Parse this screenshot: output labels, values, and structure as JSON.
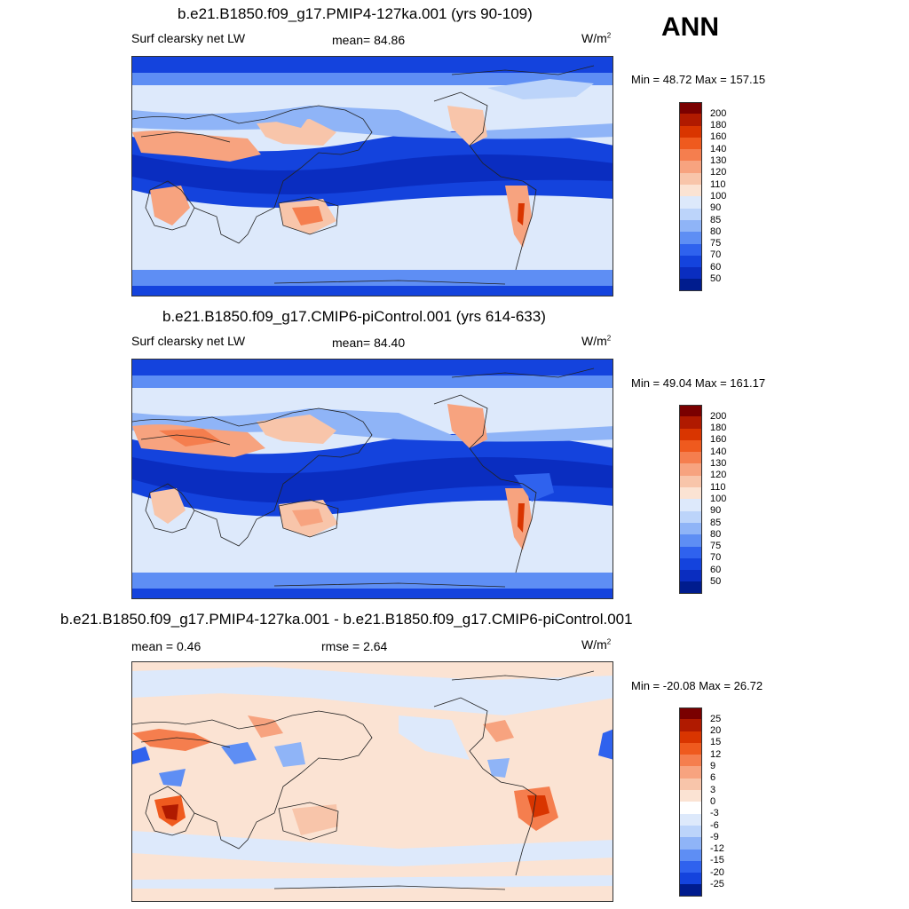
{
  "season": "ANN",
  "panels": [
    {
      "title": "b.e21.B1850.f09_g17.PMIP4-127ka.001 (yrs 90-109)",
      "left_label": "Surf clearsky net LW",
      "center_label": "mean=  84.86",
      "units_base": "W/m",
      "units_exp": "2",
      "minmax": "Min =  48.72 Max = 157.15",
      "colorbar": [
        "#7a0000",
        "#b01a00",
        "#d93500",
        "#ef5a1e",
        "#f57e4e",
        "#f7a37f",
        "#f8c5aa",
        "#fbe3d3",
        "#dde9fb",
        "#bcd4fa",
        "#8fb4f7",
        "#5e8ef4",
        "#2f62ee",
        "#1443dd",
        "#0a2dc0",
        "#001c8e"
      ],
      "ticks": [
        "200",
        "180",
        "160",
        "140",
        "130",
        "120",
        "110",
        "100",
        "90",
        "85",
        "80",
        "75",
        "70",
        "60",
        "50"
      ]
    },
    {
      "title": "b.e21.B1850.f09_g17.CMIP6-piControl.001 (yrs 614-633)",
      "left_label": "Surf clearsky net LW",
      "center_label": "mean=  84.40",
      "units_base": "W/m",
      "units_exp": "2",
      "minmax": "Min =  49.04 Max = 161.17",
      "colorbar": [
        "#7a0000",
        "#b01a00",
        "#d93500",
        "#ef5a1e",
        "#f57e4e",
        "#f7a37f",
        "#f8c5aa",
        "#fbe3d3",
        "#dde9fb",
        "#bcd4fa",
        "#8fb4f7",
        "#5e8ef4",
        "#2f62ee",
        "#1443dd",
        "#0a2dc0",
        "#001c8e"
      ],
      "ticks": [
        "200",
        "180",
        "160",
        "140",
        "130",
        "120",
        "110",
        "100",
        "90",
        "85",
        "80",
        "75",
        "70",
        "60",
        "50"
      ]
    },
    {
      "title": "b.e21.B1850.f09_g17.PMIP4-127ka.001 - b.e21.B1850.f09_g17.CMIP6-piControl.001",
      "left_label": "mean =   0.46",
      "center_label": "rmse =   2.64",
      "units_base": "W/m",
      "units_exp": "2",
      "minmax": "Min = -20.08 Max =  26.72",
      "colorbar": [
        "#7a0000",
        "#b01a00",
        "#d93500",
        "#ef5a1e",
        "#f57e4e",
        "#f7a37f",
        "#f8c5aa",
        "#fbe3d3",
        "#ffffff",
        "#dde9fb",
        "#bcd4fa",
        "#8fb4f7",
        "#5e8ef4",
        "#2f62ee",
        "#1443dd",
        "#001c8e"
      ],
      "ticks": [
        "25",
        "20",
        "15",
        "12",
        "9",
        "6",
        "3",
        "0",
        "-3",
        "-6",
        "-9",
        "-12",
        "-15",
        "-20",
        "-25"
      ]
    }
  ]
}
